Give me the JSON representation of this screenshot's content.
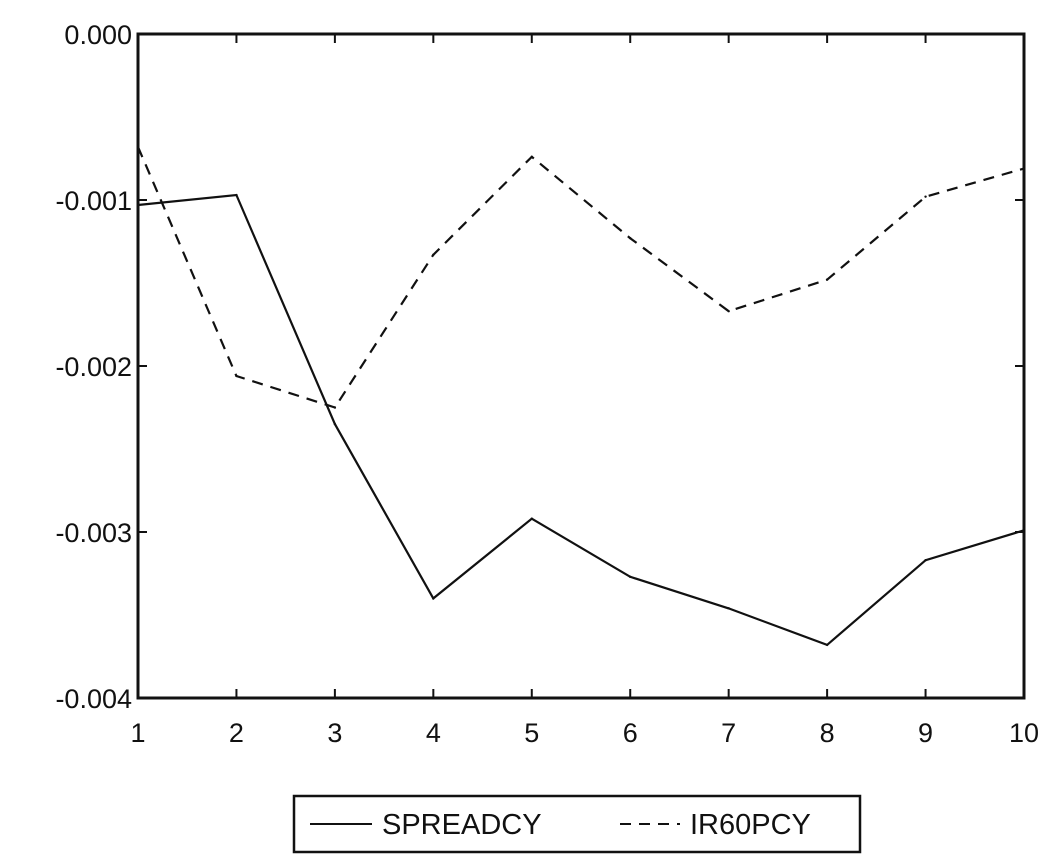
{
  "chart_data": {
    "type": "line",
    "title": "",
    "xlabel": "",
    "ylabel": "",
    "x": [
      1,
      2,
      3,
      4,
      5,
      6,
      7,
      8,
      9,
      10
    ],
    "xlim": [
      1,
      10
    ],
    "ylim": [
      -0.004,
      0.0
    ],
    "x_ticks": [
      "1",
      "2",
      "3",
      "4",
      "5",
      "6",
      "7",
      "8",
      "9",
      "10"
    ],
    "y_ticks": [
      {
        "value": 0.0,
        "label": "0.000"
      },
      {
        "value": -0.001,
        "label": "-0.001"
      },
      {
        "value": -0.002,
        "label": "-0.002"
      },
      {
        "value": -0.003,
        "label": "-0.003"
      },
      {
        "value": -0.004,
        "label": "-0.004"
      }
    ],
    "grid": false,
    "legend_position": "bottom-center",
    "series": [
      {
        "name": "SPREADCY",
        "style": "solid",
        "color": "#111111",
        "values": [
          -0.00103,
          -0.00097,
          -0.00235,
          -0.0034,
          -0.00292,
          -0.00327,
          -0.00346,
          -0.00368,
          -0.00317,
          -0.00299
        ]
      },
      {
        "name": "IR60PCY",
        "style": "dashed",
        "color": "#111111",
        "values": [
          -0.00068,
          -0.00206,
          -0.00225,
          -0.00133,
          -0.00074,
          -0.00123,
          -0.00167,
          -0.00148,
          -0.00098,
          -0.00081
        ]
      }
    ]
  }
}
